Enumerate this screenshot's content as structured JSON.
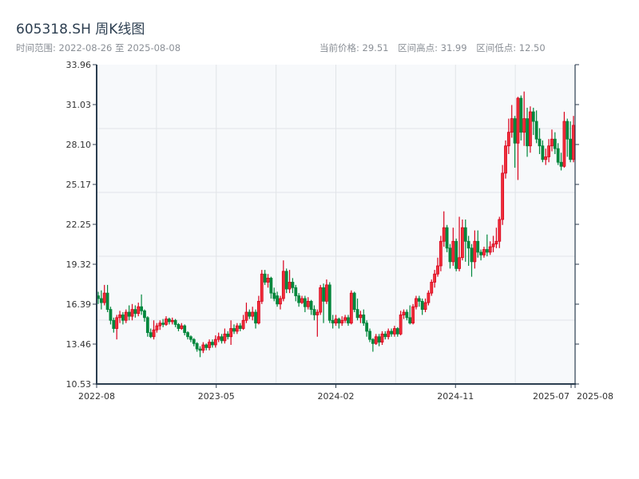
{
  "header": {
    "title": "605318.SH 周K线图",
    "range_label": "时间范围: 2022-08-26 至 2025-08-08",
    "current_price_label": "当前价格: 29.51",
    "high_label": "区间高点: 31.99",
    "low_label": "区间低点: 12.50"
  },
  "chart_data": {
    "type": "candlestick",
    "title": "605318.SH 周K线图",
    "start_date": "2022-08-26",
    "end_date": "2025-08-08",
    "frequency": "weekly",
    "ylim": [
      10.53,
      33.96
    ],
    "y_ticks": [
      "33.96",
      "31.03",
      "28.10",
      "25.17",
      "22.25",
      "19.32",
      "16.39",
      "13.46",
      "10.53"
    ],
    "x_ticks": [
      "2022-08",
      "2023-05",
      "2024-02",
      "2024-11",
      "2025-07",
      "2025-08"
    ],
    "grid": true,
    "colors": {
      "up": "#d9001b",
      "up_fill": "#f0303a",
      "down": "#00873c",
      "plot_bg": "#f7f9fb",
      "axis": "#2c3e50",
      "grid": "#e1e4e8"
    },
    "candle_format": [
      "open",
      "close",
      "low",
      "high"
    ],
    "candles": [
      [
        17.0,
        16.8,
        16.4,
        17.3
      ],
      [
        16.8,
        16.5,
        16.0,
        17.4
      ],
      [
        16.5,
        17.2,
        16.3,
        17.8
      ],
      [
        17.2,
        16.0,
        15.8,
        17.8
      ],
      [
        16.0,
        15.2,
        14.9,
        16.2
      ],
      [
        15.2,
        14.6,
        14.3,
        15.4
      ],
      [
        14.6,
        15.4,
        13.8,
        15.6
      ],
      [
        15.4,
        15.6,
        15.0,
        15.9
      ],
      [
        15.6,
        15.2,
        14.9,
        15.8
      ],
      [
        15.2,
        15.8,
        15.0,
        16.0
      ],
      [
        15.8,
        15.5,
        15.2,
        16.3
      ],
      [
        15.5,
        16.0,
        15.2,
        16.4
      ],
      [
        16.0,
        15.7,
        15.4,
        16.3
      ],
      [
        15.7,
        16.2,
        15.5,
        16.5
      ],
      [
        16.2,
        15.9,
        15.6,
        17.1
      ],
      [
        15.9,
        15.4,
        15.1,
        16.0
      ],
      [
        15.4,
        14.3,
        14.0,
        15.5
      ],
      [
        14.3,
        14.0,
        13.9,
        14.6
      ],
      [
        14.0,
        14.5,
        13.8,
        15.2
      ],
      [
        14.5,
        14.8,
        14.3,
        15.0
      ],
      [
        14.8,
        15.0,
        14.5,
        15.2
      ],
      [
        15.0,
        14.9,
        14.7,
        15.3
      ],
      [
        14.9,
        15.3,
        14.8,
        15.5
      ],
      [
        15.3,
        15.1,
        14.9,
        15.4
      ],
      [
        15.1,
        15.2,
        14.9,
        15.4
      ],
      [
        15.2,
        14.9,
        14.7,
        15.3
      ],
      [
        14.9,
        14.6,
        14.4,
        15.0
      ],
      [
        14.6,
        14.8,
        14.5,
        15.0
      ],
      [
        14.8,
        14.3,
        14.1,
        14.9
      ],
      [
        14.3,
        14.0,
        13.8,
        14.4
      ],
      [
        14.0,
        13.8,
        13.6,
        14.1
      ],
      [
        13.8,
        13.5,
        13.3,
        13.9
      ],
      [
        13.5,
        13.1,
        12.9,
        13.6
      ],
      [
        13.1,
        13.0,
        12.5,
        13.3
      ],
      [
        13.0,
        13.4,
        12.8,
        13.6
      ],
      [
        13.4,
        13.2,
        13.0,
        13.5
      ],
      [
        13.2,
        13.6,
        13.0,
        13.8
      ],
      [
        13.6,
        13.4,
        13.2,
        13.8
      ],
      [
        13.4,
        13.8,
        13.2,
        14.1
      ],
      [
        13.8,
        14.0,
        13.6,
        14.3
      ],
      [
        14.0,
        13.7,
        13.5,
        14.2
      ],
      [
        13.7,
        14.2,
        13.5,
        14.6
      ],
      [
        14.2,
        14.0,
        13.8,
        14.4
      ],
      [
        14.0,
        14.6,
        13.4,
        15.2
      ],
      [
        14.6,
        14.4,
        14.2,
        14.9
      ],
      [
        14.4,
        14.8,
        14.2,
        15.0
      ],
      [
        14.8,
        14.6,
        14.4,
        15.0
      ],
      [
        14.6,
        15.2,
        14.5,
        15.6
      ],
      [
        15.2,
        15.8,
        15.0,
        16.5
      ],
      [
        15.8,
        15.5,
        15.3,
        16.0
      ],
      [
        15.5,
        15.8,
        15.2,
        16.2
      ],
      [
        15.8,
        15.0,
        14.6,
        16.0
      ],
      [
        15.0,
        16.6,
        14.9,
        17.0
      ],
      [
        16.6,
        18.6,
        16.4,
        18.9
      ],
      [
        18.6,
        18.0,
        17.8,
        18.9
      ],
      [
        18.0,
        18.3,
        17.6,
        18.6
      ],
      [
        18.3,
        17.2,
        16.8,
        18.4
      ],
      [
        17.2,
        16.8,
        16.6,
        17.6
      ],
      [
        17.0,
        16.4,
        16.2,
        17.3
      ],
      [
        16.4,
        16.8,
        16.0,
        17.0
      ],
      [
        16.8,
        18.8,
        16.6,
        19.6
      ],
      [
        18.8,
        17.5,
        17.2,
        19.0
      ],
      [
        17.5,
        18.0,
        17.2,
        18.9
      ],
      [
        18.0,
        17.6,
        17.2,
        18.3
      ],
      [
        17.6,
        17.0,
        16.6,
        17.8
      ],
      [
        17.0,
        16.5,
        16.2,
        17.2
      ],
      [
        16.5,
        16.8,
        16.4,
        17.0
      ],
      [
        16.8,
        16.2,
        15.8,
        17.0
      ],
      [
        16.2,
        16.6,
        16.0,
        16.9
      ],
      [
        16.6,
        16.0,
        15.6,
        16.7
      ],
      [
        16.0,
        15.6,
        15.2,
        16.3
      ],
      [
        15.6,
        15.8,
        14.0,
        16.0
      ],
      [
        15.8,
        17.6,
        15.6,
        17.8
      ],
      [
        17.6,
        16.6,
        15.0,
        17.9
      ],
      [
        16.6,
        17.8,
        16.4,
        18.2
      ],
      [
        17.8,
        15.2,
        15.0,
        18.0
      ],
      [
        15.2,
        15.0,
        14.6,
        15.6
      ],
      [
        15.0,
        15.3,
        14.8,
        15.6
      ],
      [
        15.3,
        15.0,
        14.6,
        15.4
      ],
      [
        15.0,
        15.2,
        14.8,
        15.5
      ],
      [
        15.2,
        15.4,
        15.0,
        15.6
      ],
      [
        15.4,
        15.0,
        14.8,
        15.6
      ],
      [
        15.0,
        17.2,
        14.9,
        17.4
      ],
      [
        17.2,
        16.0,
        15.8,
        17.3
      ],
      [
        16.0,
        15.4,
        15.2,
        16.8
      ],
      [
        15.4,
        15.6,
        15.0,
        15.9
      ],
      [
        15.6,
        15.0,
        14.8,
        16.0
      ],
      [
        15.0,
        14.4,
        14.0,
        15.2
      ],
      [
        14.4,
        13.8,
        13.6,
        14.6
      ],
      [
        13.8,
        13.5,
        12.9,
        13.9
      ],
      [
        13.5,
        14.0,
        13.4,
        14.2
      ],
      [
        14.0,
        13.6,
        13.3,
        14.2
      ],
      [
        13.6,
        14.2,
        13.4,
        14.4
      ],
      [
        14.2,
        14.0,
        13.8,
        14.4
      ],
      [
        14.0,
        14.4,
        13.8,
        14.6
      ],
      [
        14.4,
        14.2,
        14.0,
        14.6
      ],
      [
        14.2,
        14.6,
        14.0,
        14.8
      ],
      [
        14.6,
        14.2,
        14.0,
        14.7
      ],
      [
        14.2,
        15.6,
        14.1,
        15.9
      ],
      [
        15.6,
        15.8,
        15.3,
        16.0
      ],
      [
        15.8,
        15.4,
        15.2,
        16.0
      ],
      [
        15.4,
        15.0,
        14.9,
        16.3
      ],
      [
        15.0,
        16.2,
        14.9,
        16.4
      ],
      [
        16.2,
        16.8,
        16.0,
        17.0
      ],
      [
        16.8,
        16.6,
        16.2,
        17.0
      ],
      [
        16.6,
        16.0,
        15.6,
        16.8
      ],
      [
        16.0,
        16.5,
        15.8,
        16.8
      ],
      [
        16.5,
        17.2,
        16.3,
        17.4
      ],
      [
        17.2,
        18.0,
        17.0,
        18.2
      ],
      [
        18.0,
        18.6,
        17.6,
        18.9
      ],
      [
        18.6,
        19.2,
        18.4,
        19.8
      ],
      [
        19.2,
        21.0,
        18.8,
        21.4
      ],
      [
        21.0,
        22.0,
        20.6,
        23.2
      ],
      [
        22.0,
        20.5,
        20.2,
        22.2
      ],
      [
        20.5,
        19.5,
        19.0,
        20.8
      ],
      [
        19.5,
        21.0,
        19.2,
        22.0
      ],
      [
        21.0,
        19.0,
        18.8,
        21.2
      ],
      [
        19.0,
        19.8,
        18.8,
        22.8
      ],
      [
        19.8,
        22.0,
        19.6,
        22.6
      ],
      [
        22.0,
        21.0,
        19.5,
        22.6
      ],
      [
        21.0,
        20.5,
        19.2,
        21.4
      ],
      [
        20.5,
        19.5,
        18.4,
        20.8
      ],
      [
        19.5,
        21.0,
        19.0,
        21.8
      ],
      [
        21.0,
        20.2,
        19.8,
        21.8
      ],
      [
        20.2,
        20.0,
        19.6,
        20.4
      ],
      [
        20.0,
        20.4,
        19.8,
        20.6
      ],
      [
        20.4,
        20.2,
        19.9,
        21.5
      ],
      [
        20.2,
        20.6,
        20.0,
        21.0
      ],
      [
        20.6,
        20.8,
        20.2,
        21.4
      ],
      [
        20.8,
        21.0,
        20.5,
        22.0
      ],
      [
        21.0,
        22.6,
        20.5,
        22.8
      ],
      [
        22.6,
        26.0,
        22.2,
        26.6
      ],
      [
        26.0,
        28.0,
        25.6,
        28.4
      ],
      [
        28.0,
        29.0,
        27.4,
        30.0
      ],
      [
        29.0,
        30.0,
        28.6,
        31.0
      ],
      [
        30.0,
        28.2,
        26.4,
        30.2
      ],
      [
        28.2,
        31.5,
        25.5,
        31.6
      ],
      [
        31.5,
        29.0,
        28.4,
        31.7
      ],
      [
        29.0,
        30.0,
        28.0,
        31.99
      ],
      [
        30.0,
        28.0,
        27.2,
        30.8
      ],
      [
        28.0,
        30.5,
        27.5,
        30.9
      ],
      [
        30.5,
        29.8,
        28.8,
        30.8
      ],
      [
        29.8,
        28.5,
        28.2,
        30.6
      ],
      [
        28.5,
        28.0,
        27.4,
        29.3
      ],
      [
        28.0,
        27.0,
        26.8,
        28.4
      ],
      [
        27.0,
        27.2,
        26.6,
        27.8
      ],
      [
        27.2,
        28.0,
        26.8,
        28.5
      ],
      [
        28.0,
        28.5,
        27.6,
        29.2
      ],
      [
        28.5,
        27.8,
        27.4,
        29.0
      ],
      [
        27.8,
        26.8,
        26.6,
        28.2
      ],
      [
        26.8,
        26.5,
        26.2,
        27.5
      ],
      [
        26.5,
        29.8,
        26.4,
        30.5
      ],
      [
        29.8,
        28.5,
        27.2,
        30.0
      ],
      [
        28.5,
        27.0,
        26.8,
        29.8
      ],
      [
        27.0,
        29.51,
        26.8,
        30.2
      ]
    ]
  }
}
